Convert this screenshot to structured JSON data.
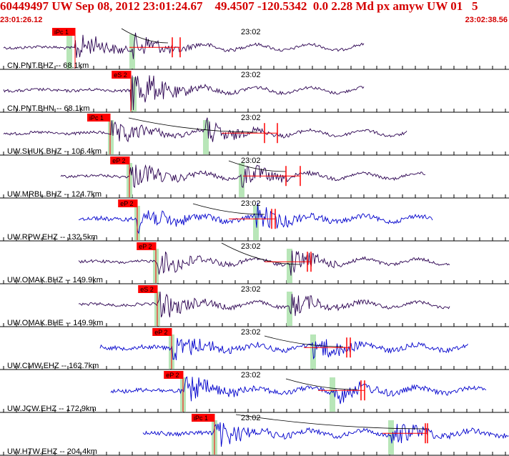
{
  "header": {
    "title": "60449497 UW Sep 08, 2012 23:01:24.67    49.4507 -120.5342  0.0 2.28 Md px amyw UW 01   5",
    "start_time": "23:01:26.12",
    "end_time": "23:02:38.56"
  },
  "time_mark": "23:02",
  "colors": {
    "header": "#d40000",
    "dark_trace": "#2a0050",
    "blue_trace": "#0000cc",
    "pick_box": "#ff0000",
    "window": "#b8e6b8"
  },
  "traces": [
    {
      "label": "CN.PNT.BHZ -- 68.1km",
      "pick": "iPc 1",
      "color": "dark"
    },
    {
      "label": "CN.PNT.BHN -- 68.1km",
      "pick": "eS 2",
      "color": "dark"
    },
    {
      "label": "UW.SHUK.BHZ -- 106.4km",
      "pick": "iPc 1",
      "color": "dark"
    },
    {
      "label": "UW.MRBL.BHZ -- 124.7km",
      "pick": "eP 2",
      "color": "dark"
    },
    {
      "label": "UW.RPW.EHZ -- 132.5km",
      "pick": "eP 2",
      "color": "blue"
    },
    {
      "label": "UW.OMAK.BHZ -- 149.9km",
      "pick": "eP 2",
      "color": "dark"
    },
    {
      "label": "UW.OMAK.BHE -- 149.9km",
      "pick": "eS 2",
      "color": "dark"
    },
    {
      "label": "UW.CMW.EHZ -- 162.7km",
      "pick": "eP 2",
      "color": "blue"
    },
    {
      "label": "UW.JCW.EHZ -- 172.9km",
      "pick": "eP 2",
      "color": "blue"
    },
    {
      "label": "UW.HTW.EHZ -- 204.4km",
      "pick": "iPc 1",
      "color": "blue"
    }
  ]
}
